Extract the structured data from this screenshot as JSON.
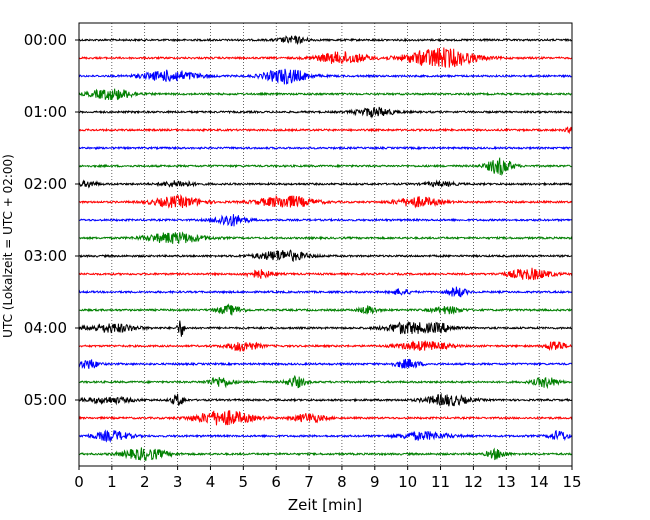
{
  "chart_data": {
    "type": "line",
    "subtype": "helicorder",
    "xlabel": "Zeit  [min]",
    "ylabel": "UTC (Lokalzeit = UTC + 02:00)",
    "xlim": [
      0,
      15
    ],
    "x_ticks": [
      "0",
      "1",
      "2",
      "3",
      "4",
      "5",
      "6",
      "7",
      "8",
      "9",
      "10",
      "11",
      "12",
      "13",
      "14",
      "15"
    ],
    "y_tick_labels": [
      {
        "label": "00:00",
        "row": 0
      },
      {
        "label": "01:00",
        "row": 4
      },
      {
        "label": "02:00",
        "row": 8
      },
      {
        "label": "03:00",
        "row": 12
      },
      {
        "label": "04:00",
        "row": 16
      },
      {
        "label": "05:00",
        "row": 20
      }
    ],
    "trace_minutes_per_row": 15,
    "row_count": 24,
    "vertical_grid": "dotted, every 1 min",
    "colors": [
      "#000000",
      "#ff0000",
      "#0000ff",
      "#008000"
    ],
    "rows": [
      {
        "events": [
          {
            "t": 6.5,
            "amp": 0.35,
            "w": 0.9
          }
        ]
      },
      {
        "events": [
          {
            "t": 8.0,
            "amp": 0.6,
            "w": 1.6
          },
          {
            "t": 11.0,
            "amp": 1.0,
            "w": 2.2
          }
        ]
      },
      {
        "events": [
          {
            "t": 2.8,
            "amp": 0.55,
            "w": 1.8
          },
          {
            "t": 6.3,
            "amp": 0.75,
            "w": 1.4
          }
        ]
      },
      {
        "events": [
          {
            "t": 1.0,
            "amp": 0.55,
            "w": 1.4
          }
        ]
      },
      {
        "events": [
          {
            "t": 9.0,
            "amp": 0.45,
            "w": 1.2
          }
        ]
      },
      {
        "events": [
          {
            "t": 15.0,
            "amp": 0.3,
            "w": 0.4
          }
        ]
      },
      {
        "events": []
      },
      {
        "events": [
          {
            "t": 12.8,
            "amp": 0.85,
            "w": 0.8
          }
        ]
      },
      {
        "events": [
          {
            "t": 0.3,
            "amp": 0.3,
            "w": 0.6
          },
          {
            "t": 3.0,
            "amp": 0.3,
            "w": 1.0
          },
          {
            "t": 11.0,
            "amp": 0.2,
            "w": 1.0
          }
        ]
      },
      {
        "events": [
          {
            "t": 3.0,
            "amp": 0.55,
            "w": 1.6
          },
          {
            "t": 6.3,
            "amp": 0.6,
            "w": 1.8
          },
          {
            "t": 10.3,
            "amp": 0.5,
            "w": 1.4
          }
        ]
      },
      {
        "events": [
          {
            "t": 4.6,
            "amp": 0.6,
            "w": 1.0
          }
        ]
      },
      {
        "events": [
          {
            "t": 2.9,
            "amp": 0.55,
            "w": 1.8
          }
        ]
      },
      {
        "events": [
          {
            "t": 6.2,
            "amp": 0.55,
            "w": 1.6
          }
        ]
      },
      {
        "events": [
          {
            "t": 5.5,
            "amp": 0.4,
            "w": 0.8
          },
          {
            "t": 13.7,
            "amp": 0.55,
            "w": 1.4
          }
        ]
      },
      {
        "events": [
          {
            "t": 9.8,
            "amp": 0.3,
            "w": 0.6
          },
          {
            "t": 11.5,
            "amp": 0.5,
            "w": 0.6
          }
        ]
      },
      {
        "events": [
          {
            "t": 4.6,
            "amp": 0.45,
            "w": 0.8
          },
          {
            "t": 8.8,
            "amp": 0.4,
            "w": 0.6
          },
          {
            "t": 11.2,
            "amp": 0.35,
            "w": 1.0
          }
        ]
      },
      {
        "events": [
          {
            "t": 1.0,
            "amp": 0.45,
            "w": 1.6
          },
          {
            "t": 3.1,
            "amp": 0.95,
            "w": 0.2
          },
          {
            "t": 10.0,
            "amp": 0.6,
            "w": 1.4
          },
          {
            "t": 11.0,
            "amp": 0.4,
            "w": 1.0
          }
        ]
      },
      {
        "events": [
          {
            "t": 5.0,
            "amp": 0.5,
            "w": 1.0
          },
          {
            "t": 10.5,
            "amp": 0.45,
            "w": 1.6
          },
          {
            "t": 14.5,
            "amp": 0.55,
            "w": 0.6
          }
        ]
      },
      {
        "events": [
          {
            "t": 0.3,
            "amp": 0.5,
            "w": 0.6
          },
          {
            "t": 10.0,
            "amp": 0.45,
            "w": 0.8
          }
        ]
      },
      {
        "events": [
          {
            "t": 4.3,
            "amp": 0.5,
            "w": 0.8
          },
          {
            "t": 6.6,
            "amp": 0.55,
            "w": 0.6
          },
          {
            "t": 14.2,
            "amp": 0.5,
            "w": 0.8
          }
        ]
      },
      {
        "events": [
          {
            "t": 0.9,
            "amp": 0.3,
            "w": 1.6
          },
          {
            "t": 3.0,
            "amp": 0.6,
            "w": 0.4
          },
          {
            "t": 11.2,
            "amp": 0.55,
            "w": 1.4
          }
        ]
      },
      {
        "events": [
          {
            "t": 4.4,
            "amp": 0.75,
            "w": 1.8
          },
          {
            "t": 7.0,
            "amp": 0.45,
            "w": 1.0
          }
        ]
      },
      {
        "events": [
          {
            "t": 1.0,
            "amp": 0.5,
            "w": 1.2
          },
          {
            "t": 10.5,
            "amp": 0.4,
            "w": 1.6
          },
          {
            "t": 14.6,
            "amp": 0.5,
            "w": 0.6
          }
        ]
      },
      {
        "events": [
          {
            "t": 2.0,
            "amp": 0.6,
            "w": 1.4
          },
          {
            "t": 12.7,
            "amp": 0.5,
            "w": 0.6
          }
        ]
      }
    ]
  }
}
